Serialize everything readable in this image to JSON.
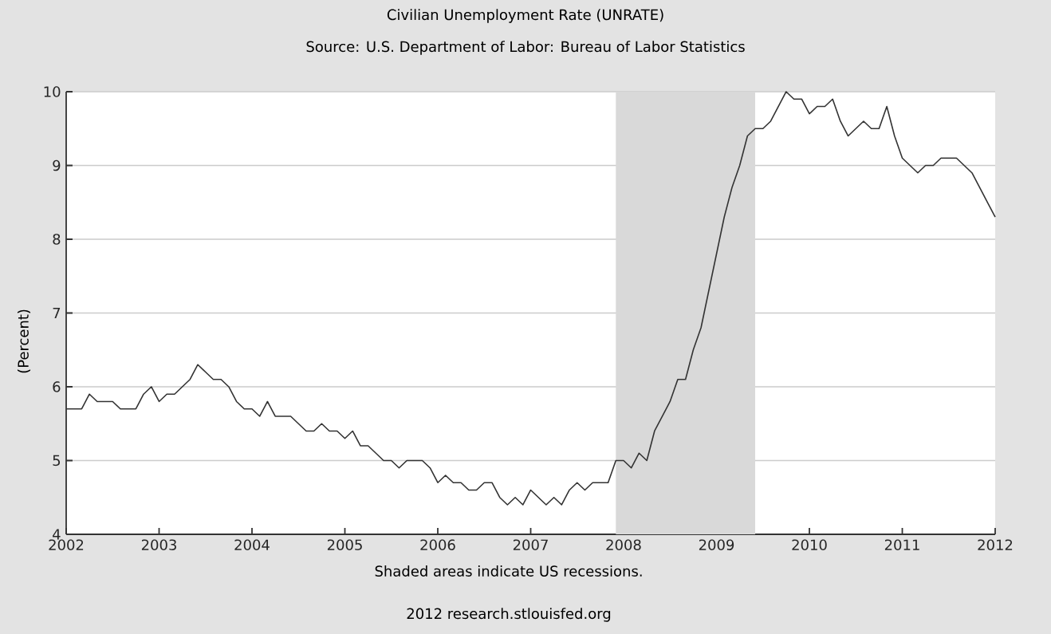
{
  "chart_data": {
    "type": "line",
    "title": "Civilian Unemployment Rate (UNRATE)",
    "subtitle": "Source: U.S. Department of Labor: Bureau of Labor Statistics",
    "ylabel": "(Percent)",
    "annotations": [
      "Shaded areas indicate US recessions.",
      "2012 research.stlouisfed.org"
    ],
    "x": [
      "2002-01",
      "2002-02",
      "2002-03",
      "2002-04",
      "2002-05",
      "2002-06",
      "2002-07",
      "2002-08",
      "2002-09",
      "2002-10",
      "2002-11",
      "2002-12",
      "2003-01",
      "2003-02",
      "2003-03",
      "2003-04",
      "2003-05",
      "2003-06",
      "2003-07",
      "2003-08",
      "2003-09",
      "2003-10",
      "2003-11",
      "2003-12",
      "2004-01",
      "2004-02",
      "2004-03",
      "2004-04",
      "2004-05",
      "2004-06",
      "2004-07",
      "2004-08",
      "2004-09",
      "2004-10",
      "2004-11",
      "2004-12",
      "2005-01",
      "2005-02",
      "2005-03",
      "2005-04",
      "2005-05",
      "2005-06",
      "2005-07",
      "2005-08",
      "2005-09",
      "2005-10",
      "2005-11",
      "2005-12",
      "2006-01",
      "2006-02",
      "2006-03",
      "2006-04",
      "2006-05",
      "2006-06",
      "2006-07",
      "2006-08",
      "2006-09",
      "2006-10",
      "2006-11",
      "2006-12",
      "2007-01",
      "2007-02",
      "2007-03",
      "2007-04",
      "2007-05",
      "2007-06",
      "2007-07",
      "2007-08",
      "2007-09",
      "2007-10",
      "2007-11",
      "2007-12",
      "2008-01",
      "2008-02",
      "2008-03",
      "2008-04",
      "2008-05",
      "2008-06",
      "2008-07",
      "2008-08",
      "2008-09",
      "2008-10",
      "2008-11",
      "2008-12",
      "2009-01",
      "2009-02",
      "2009-03",
      "2009-04",
      "2009-05",
      "2009-06",
      "2009-07",
      "2009-08",
      "2009-09",
      "2009-10",
      "2009-11",
      "2009-12",
      "2010-01",
      "2010-02",
      "2010-03",
      "2010-04",
      "2010-05",
      "2010-06",
      "2010-07",
      "2010-08",
      "2010-09",
      "2010-10",
      "2010-11",
      "2010-12",
      "2011-01",
      "2011-02",
      "2011-03",
      "2011-04",
      "2011-05",
      "2011-06",
      "2011-07",
      "2011-08",
      "2011-09",
      "2011-10",
      "2011-11",
      "2011-12",
      "2012-01"
    ],
    "values": [
      5.7,
      5.7,
      5.7,
      5.9,
      5.8,
      5.8,
      5.8,
      5.7,
      5.7,
      5.7,
      5.9,
      6.0,
      5.8,
      5.9,
      5.9,
      6.0,
      6.1,
      6.3,
      6.2,
      6.1,
      6.1,
      6.0,
      5.8,
      5.7,
      5.7,
      5.6,
      5.8,
      5.6,
      5.6,
      5.6,
      5.5,
      5.4,
      5.4,
      5.5,
      5.4,
      5.4,
      5.3,
      5.4,
      5.2,
      5.2,
      5.1,
      5.0,
      5.0,
      4.9,
      5.0,
      5.0,
      5.0,
      4.9,
      4.7,
      4.8,
      4.7,
      4.7,
      4.6,
      4.6,
      4.7,
      4.7,
      4.5,
      4.4,
      4.5,
      4.4,
      4.6,
      4.5,
      4.4,
      4.5,
      4.4,
      4.6,
      4.7,
      4.6,
      4.7,
      4.7,
      4.7,
      5.0,
      5.0,
      4.9,
      5.1,
      5.0,
      5.4,
      5.6,
      5.8,
      6.1,
      6.1,
      6.5,
      6.8,
      7.3,
      7.8,
      8.3,
      8.7,
      9.0,
      9.4,
      9.5,
      9.5,
      9.6,
      9.8,
      10.0,
      9.9,
      9.9,
      9.7,
      9.8,
      9.8,
      9.9,
      9.6,
      9.4,
      9.5,
      9.6,
      9.5,
      9.5,
      9.8,
      9.4,
      9.1,
      9.0,
      8.9,
      9.0,
      9.0,
      9.1,
      9.1,
      9.1,
      9.0,
      8.9,
      8.7,
      8.5,
      8.3
    ],
    "color": "#333333",
    "xlim": [
      "2002-01",
      "2012-01"
    ],
    "xticks": [
      "2002",
      "2003",
      "2004",
      "2005",
      "2006",
      "2007",
      "2008",
      "2009",
      "2010",
      "2011",
      "2012"
    ],
    "ylim": [
      4,
      10
    ],
    "yticks": [
      4,
      5,
      6,
      7,
      8,
      9,
      10
    ],
    "grid": "y",
    "bands": [
      {
        "axis": "x",
        "from": "2007-12",
        "to": "2009-06",
        "color": "#d9d9d9"
      }
    ]
  }
}
